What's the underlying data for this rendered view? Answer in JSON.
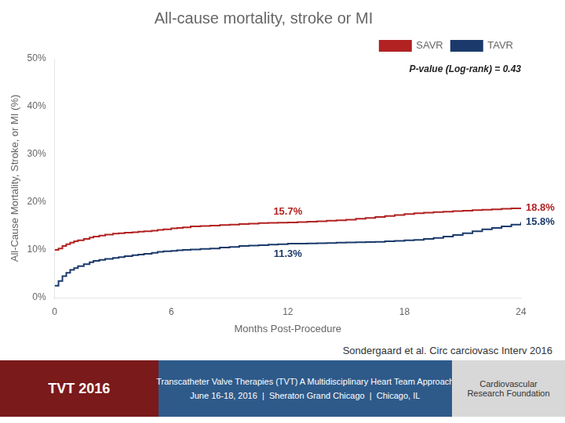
{
  "chart_data": {
    "type": "line",
    "title": "All-cause mortality, stroke or MI",
    "xlabel": "Months Post-Procedure",
    "ylabel": "All-Cause Mortality, Stroke, or MI (%)",
    "x": [
      0,
      0.2,
      0.4,
      0.6,
      0.8,
      1.0,
      1.2,
      1.5,
      1.8,
      2.0,
      2.3,
      2.6,
      3.0,
      3.3,
      3.6,
      4.0,
      4.3,
      4.6,
      5.0,
      5.3,
      5.6,
      6.0,
      6.3,
      6.6,
      7.0,
      7.5,
      8.0,
      8.5,
      9.0,
      9.5,
      10.0,
      10.5,
      11.0,
      11.5,
      12.0,
      12.5,
      13.0,
      13.5,
      14.0,
      14.5,
      15.0,
      15.5,
      16.0,
      16.5,
      17.0,
      17.5,
      18.0,
      18.5,
      19.0,
      19.5,
      20.0,
      20.5,
      21.0,
      21.5,
      22.0,
      22.5,
      23.0,
      23.5,
      24.0
    ],
    "series": [
      {
        "name": "SAVR",
        "color": "#B22222",
        "line_style": "step",
        "values": [
          10,
          10.3,
          10.8,
          11.2,
          11.5,
          11.8,
          12.0,
          12.3,
          12.6,
          12.8,
          13.0,
          13.2,
          13.4,
          13.5,
          13.6,
          13.7,
          13.8,
          13.9,
          14.0,
          14.2,
          14.3,
          14.5,
          14.6,
          14.7,
          14.9,
          15.0,
          15.1,
          15.2,
          15.3,
          15.4,
          15.5,
          15.6,
          15.65,
          15.7,
          15.72,
          15.8,
          15.9,
          16.0,
          16.1,
          16.2,
          16.3,
          16.5,
          16.7,
          16.9,
          17.1,
          17.3,
          17.5,
          17.65,
          17.8,
          17.9,
          18.0,
          18.1,
          18.2,
          18.3,
          18.4,
          18.5,
          18.6,
          18.7,
          18.8
        ]
      },
      {
        "name": "TAVR",
        "color": "#1B3A6B",
        "line_style": "step",
        "values": [
          2.5,
          3.5,
          4.5,
          5.2,
          5.8,
          6.2,
          6.6,
          7.0,
          7.4,
          7.7,
          7.9,
          8.1,
          8.3,
          8.5,
          8.7,
          8.9,
          9.0,
          9.2,
          9.4,
          9.6,
          9.7,
          9.8,
          9.9,
          10.0,
          10.1,
          10.2,
          10.3,
          10.5,
          10.6,
          10.8,
          10.9,
          11.0,
          11.1,
          11.2,
          11.3,
          11.32,
          11.35,
          11.4,
          11.45,
          11.5,
          11.55,
          11.6,
          11.65,
          11.7,
          11.8,
          11.9,
          12.0,
          12.1,
          12.3,
          12.5,
          12.8,
          13.1,
          13.5,
          13.9,
          14.3,
          14.6,
          14.9,
          15.3,
          15.8
        ]
      }
    ],
    "xlim": [
      0,
      24
    ],
    "ylim": [
      0,
      50
    ],
    "xticks": [
      0,
      6,
      12,
      18,
      24
    ],
    "yticks": [
      {
        "value": 0,
        "label": "0%"
      },
      {
        "value": 10,
        "label": "10%"
      },
      {
        "value": 20,
        "label": "20%"
      },
      {
        "value": 30,
        "label": "30%"
      },
      {
        "value": 40,
        "label": "40%"
      },
      {
        "value": 50,
        "label": "50%"
      }
    ],
    "grid": false,
    "legend": "upper right",
    "annotations": [
      {
        "text": "P-value (Log-rank) = 0.43"
      },
      {
        "text": "15.7%",
        "series": "SAVR",
        "x": 12
      },
      {
        "text": "11.3%",
        "series": "TAVR",
        "x": 12
      },
      {
        "text": "18.8%",
        "series": "SAVR",
        "x": 24
      },
      {
        "text": "15.8%",
        "series": "TAVR",
        "x": 24
      }
    ],
    "citation": "Sondergaard et al. Circ carciovasc Interv 2016",
    "banner": [
      "TVT 2016",
      "Transcatheter Valve Therapies (TVT) A Multidisciplinary Heart Team Approach",
      "June 16-18, 2016  |  Sheraton Grand Chicago  |  Chicago, IL",
      "Cardiovascular\nResearch Foundation"
    ]
  }
}
